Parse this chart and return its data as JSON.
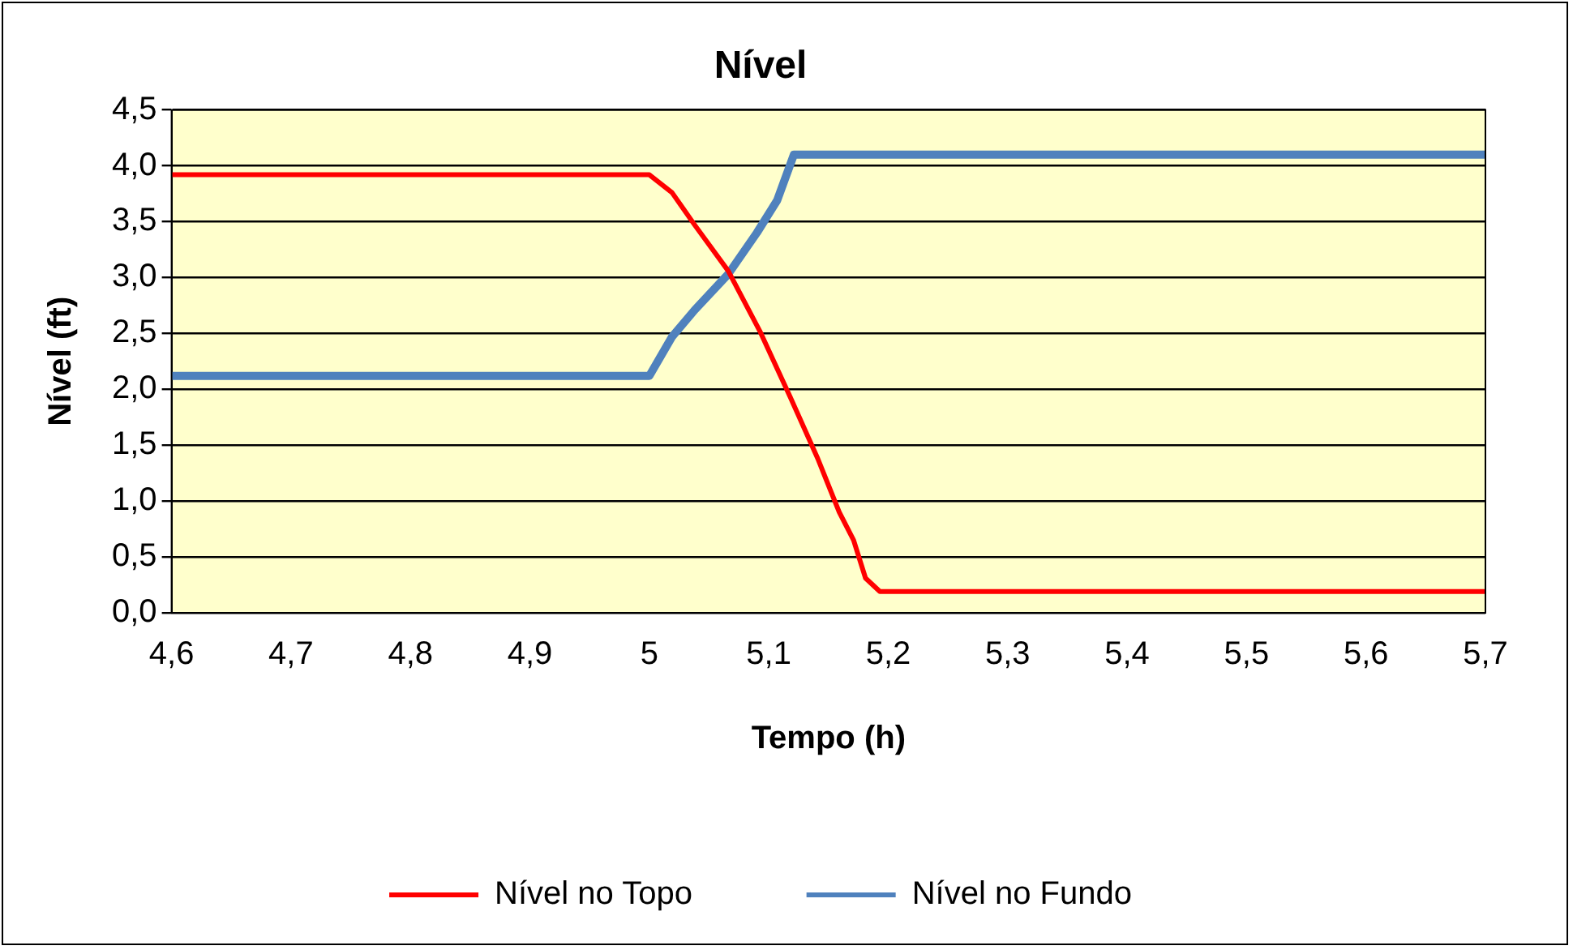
{
  "chart_data": {
    "type": "line",
    "title": "Nível",
    "xlabel": "Tempo (h)",
    "ylabel": "Nível (ft)",
    "xlim": [
      4.6,
      5.7
    ],
    "xticks": [
      {
        "value": 4.6,
        "label": "4,6"
      },
      {
        "value": 4.7,
        "label": "4,7"
      },
      {
        "value": 4.8,
        "label": "4,8"
      },
      {
        "value": 4.9,
        "label": "4,9"
      },
      {
        "value": 5,
        "label": "5"
      },
      {
        "value": 5.1,
        "label": "5,1"
      },
      {
        "value": 5.2,
        "label": "5,2"
      },
      {
        "value": 5.3,
        "label": "5,3"
      },
      {
        "value": 5.4,
        "label": "5,4"
      },
      {
        "value": 5.5,
        "label": "5,5"
      },
      {
        "value": 5.6,
        "label": "5,6"
      },
      {
        "value": 5.7,
        "label": "5,7"
      }
    ],
    "ylim": [
      0,
      4.5
    ],
    "yticks": [
      {
        "value": 0,
        "label": "0,0"
      },
      {
        "value": 0.5,
        "label": "0,5"
      },
      {
        "value": 1,
        "label": "1,0"
      },
      {
        "value": 1.5,
        "label": "1,5"
      },
      {
        "value": 2,
        "label": "2,0"
      },
      {
        "value": 2.5,
        "label": "2,5"
      },
      {
        "value": 3,
        "label": "3,0"
      },
      {
        "value": 3.5,
        "label": "3,5"
      },
      {
        "value": 4,
        "label": "4,0"
      },
      {
        "value": 4.5,
        "label": "4,5"
      }
    ],
    "grid": "y",
    "legend": "bottom",
    "marker": "none",
    "series": [
      {
        "name": "Nível no Topo",
        "color": "#ff0000",
        "x": [
          4.6,
          5.0,
          5.019,
          5.038,
          5.066,
          5.093,
          5.118,
          5.141,
          5.159,
          5.171,
          5.181,
          5.193,
          5.7
        ],
        "values": [
          3.92,
          3.92,
          3.76,
          3.47,
          3.06,
          2.51,
          1.93,
          1.38,
          0.9,
          0.65,
          0.31,
          0.19,
          0.19
        ]
      },
      {
        "name": "Nível no Fundo",
        "color": "#4f81bd",
        "x": [
          4.6,
          5.0,
          5.019,
          5.038,
          5.066,
          5.09,
          5.107,
          5.121,
          5.7
        ],
        "values": [
          2.12,
          2.12,
          2.47,
          2.71,
          3.03,
          3.4,
          3.69,
          4.1,
          4.1
        ]
      }
    ]
  }
}
